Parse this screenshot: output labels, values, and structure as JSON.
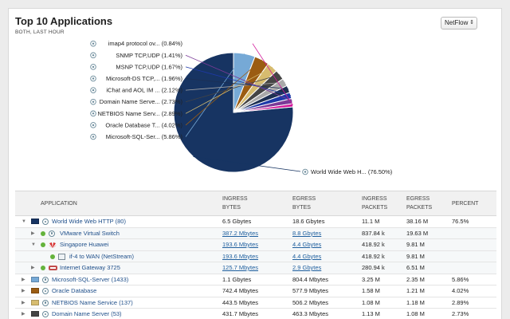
{
  "header": {
    "title": "Top 10 Applications",
    "subtitle": "BOTH, LAST HOUR",
    "source_select": "NetFlow"
  },
  "chart_data": {
    "type": "pie",
    "slices": [
      {
        "label": "World Wide Web H...",
        "pct_text": "(76.50%)",
        "value": 76.5,
        "color": "#173462"
      },
      {
        "label": "Microsoft-SQL-Ser...",
        "pct_text": "(5.86%)",
        "value": 5.86,
        "color": "#76a9d6"
      },
      {
        "label": "Oracle Database T...",
        "pct_text": "(4.02%)",
        "value": 4.02,
        "color": "#9b5c12"
      },
      {
        "label": "NETBIOS Name Serv...",
        "pct_text": "(2.89%)",
        "value": 2.89,
        "color": "#d7bc6f"
      },
      {
        "label": "Domain Name Serve...",
        "pct_text": "(2.73%)",
        "value": 2.73,
        "color": "#454545"
      },
      {
        "label": "iChat and AOL IM ...",
        "pct_text": "(2.12%)",
        "value": 2.12,
        "color": "#a9a9a9"
      },
      {
        "label": "Microsoft-DS TCP,...",
        "pct_text": "(1.96%)",
        "value": 1.96,
        "color": "#1d2f52"
      },
      {
        "label": "MSNP TCP,UDP",
        "pct_text": "(1.67%)",
        "value": 1.67,
        "color": "#1e39a8"
      },
      {
        "label": "SNMP TCP,UDP",
        "pct_text": "(1.41%)",
        "value": 1.41,
        "color": "#7b3a97"
      },
      {
        "label": "imap4 protocol ov...",
        "pct_text": "(0.84%)",
        "value": 0.84,
        "color": "#d2179a"
      }
    ]
  },
  "table": {
    "headers": {
      "application": "APPLICATION",
      "ingress_bytes": [
        "INGRESS",
        "BYTES"
      ],
      "egress_bytes": [
        "EGRESS",
        "BYTES"
      ],
      "ingress_packets": [
        "INGRESS",
        "PACKETS"
      ],
      "egress_packets": [
        "EGRESS",
        "PACKETS"
      ],
      "percent": "PERCENT"
    },
    "rows": [
      {
        "level": 0,
        "expand": "▼",
        "icon": "swatch",
        "color": "#173462",
        "name": "World Wide Web HTTP (80)",
        "ingress_bytes": "6.5 Gbytes",
        "egress_bytes": "18.6 Gbytes",
        "ingress_packets": "11.1 M",
        "egress_packets": "38.16 M",
        "percent": "76.5%",
        "link": false
      },
      {
        "level": 1,
        "expand": "▶",
        "icon": "gear",
        "name": "VMware Virtual Switch",
        "ingress_bytes": "387.2 Mbytes",
        "egress_bytes": "8.8 Gbytes",
        "ingress_packets": "837.84 k",
        "egress_packets": "19.63 M",
        "percent": "",
        "link": true
      },
      {
        "level": 1,
        "expand": "▼",
        "icon": "huawei",
        "name": "Singapore Huawei",
        "ingress_bytes": "193.6 Mbytes",
        "egress_bytes": "4.4 Gbytes",
        "ingress_packets": "418.92 k",
        "egress_packets": "9.81 M",
        "percent": "",
        "link": true
      },
      {
        "level": 2,
        "expand": "",
        "icon": "interface",
        "name": "if-4 to WAN (NetStream)",
        "ingress_bytes": "193.6 Mbytes",
        "egress_bytes": "4.4 Gbytes",
        "ingress_packets": "418.92 k",
        "egress_packets": "9.81 M",
        "percent": "",
        "link": true
      },
      {
        "level": 1,
        "expand": "▶",
        "icon": "router",
        "name": "Internet Gateway 3725",
        "ingress_bytes": "125.7 Mbytes",
        "egress_bytes": "2.9 Gbytes",
        "ingress_packets": "280.94 k",
        "egress_packets": "6.51 M",
        "percent": "",
        "link": true
      },
      {
        "level": 0,
        "expand": "▶",
        "icon": "swatch",
        "color": "#76a9d6",
        "name": "Microsoft-SQL-Server (1433)",
        "ingress_bytes": "1.1 Gbytes",
        "egress_bytes": "804.4 Mbytes",
        "ingress_packets": "3.25 M",
        "egress_packets": "2.35 M",
        "percent": "5.86%",
        "link": false
      },
      {
        "level": 0,
        "expand": "▶",
        "icon": "swatch",
        "color": "#9b5c12",
        "name": "Oracle Database",
        "ingress_bytes": "742.4 Mbytes",
        "egress_bytes": "577.9 Mbytes",
        "ingress_packets": "1.58 M",
        "egress_packets": "1.21 M",
        "percent": "4.02%",
        "link": false
      },
      {
        "level": 0,
        "expand": "▶",
        "icon": "swatch",
        "color": "#d7bc6f",
        "name": "NETBIOS Name Service (137)",
        "ingress_bytes": "443.5 Mbytes",
        "egress_bytes": "506.2 Mbytes",
        "ingress_packets": "1.08 M",
        "egress_packets": "1.18 M",
        "percent": "2.89%",
        "link": false
      },
      {
        "level": 0,
        "expand": "▶",
        "icon": "swatch",
        "color": "#454545",
        "name": "Domain Name Server (53)",
        "ingress_bytes": "431.7 Mbytes",
        "egress_bytes": "463.3 Mbytes",
        "ingress_packets": "1.13 M",
        "egress_packets": "1.08 M",
        "percent": "2.73%",
        "link": false
      }
    ]
  }
}
